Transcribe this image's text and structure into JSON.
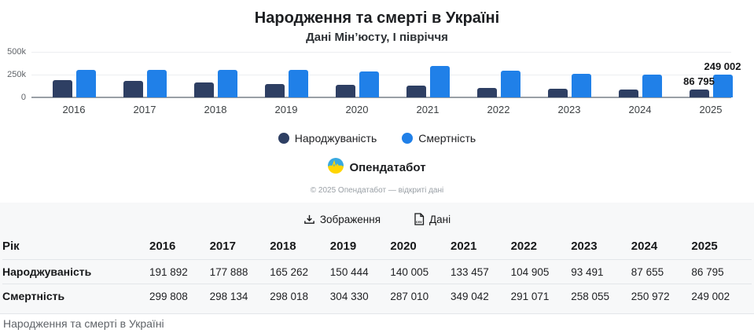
{
  "chart_data": {
    "type": "bar",
    "title": "Народження та смерті в Україні",
    "subtitle": "Дані Мін’юсту, І півріччя",
    "categories": [
      "2016",
      "2017",
      "2018",
      "2019",
      "2020",
      "2021",
      "2022",
      "2023",
      "2024",
      "2025"
    ],
    "series": [
      {
        "name": "Народжуваність",
        "color": "#2e3f63",
        "values": [
          191892,
          177888,
          165262,
          150444,
          140005,
          133457,
          104905,
          93491,
          87655,
          86795
        ]
      },
      {
        "name": "Смертність",
        "color": "#2080e8",
        "values": [
          299808,
          298134,
          298018,
          304330,
          287010,
          349042,
          291071,
          258055,
          250972,
          249002
        ]
      }
    ],
    "ylim": [
      0,
      500000
    ],
    "yticks": [
      "500k",
      "250k",
      "0"
    ],
    "grid": true,
    "legend_position": "bottom",
    "last_value_labels": [
      "86 795",
      "249 002"
    ]
  },
  "branding": {
    "logo_text": "Опендатабот",
    "copyright": "© 2025 Опендатабот — відкриті дані"
  },
  "actions": {
    "image_label": "Зображення",
    "data_label": "Дані",
    "csv_badge": "csv"
  },
  "table": {
    "header": [
      "Рік",
      "2016",
      "2017",
      "2018",
      "2019",
      "2020",
      "2021",
      "2022",
      "2023",
      "2024",
      "2025"
    ],
    "rows": [
      {
        "label": "Народжуваність",
        "values": [
          "191 892",
          "177 888",
          "165 262",
          "150 444",
          "140 005",
          "133 457",
          "104 905",
          "93 491",
          "87 655",
          "86 795"
        ]
      },
      {
        "label": "Смертність",
        "values": [
          "299 808",
          "298 134",
          "298 018",
          "304 330",
          "287 010",
          "349 042",
          "291 071",
          "258 055",
          "250 972",
          "249 002"
        ]
      }
    ]
  },
  "footer": {
    "text": "Народження та смерті в Україні"
  }
}
